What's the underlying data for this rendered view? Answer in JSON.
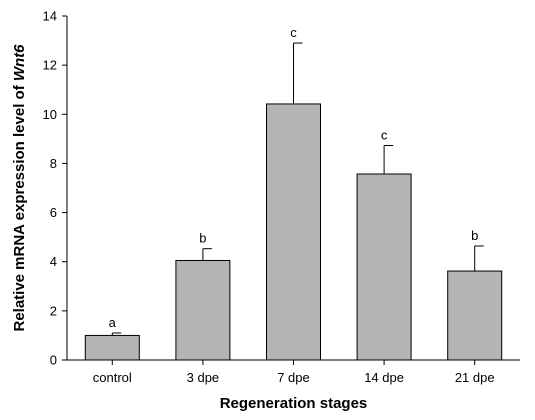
{
  "chart_data": {
    "type": "bar",
    "categories": [
      "control",
      "3 dpe",
      "7 dpe",
      "14 dpe",
      "21 dpe"
    ],
    "values": [
      1.0,
      4.05,
      10.42,
      7.57,
      3.62
    ],
    "errors": [
      0.1,
      0.48,
      2.48,
      1.16,
      1.02
    ],
    "significance_letters": [
      "a",
      "b",
      "c",
      "c",
      "b"
    ],
    "xlabel": "Regeneration stages",
    "ylabel_prefix": "Relative mRNA expression level of ",
    "ylabel_gene": "Wnt6",
    "ylim": [
      0,
      14
    ],
    "yticks": [
      0,
      2,
      4,
      6,
      8,
      10,
      12,
      14
    ],
    "bar_color": "#b4b4b4",
    "grid": false,
    "legend": "none"
  }
}
